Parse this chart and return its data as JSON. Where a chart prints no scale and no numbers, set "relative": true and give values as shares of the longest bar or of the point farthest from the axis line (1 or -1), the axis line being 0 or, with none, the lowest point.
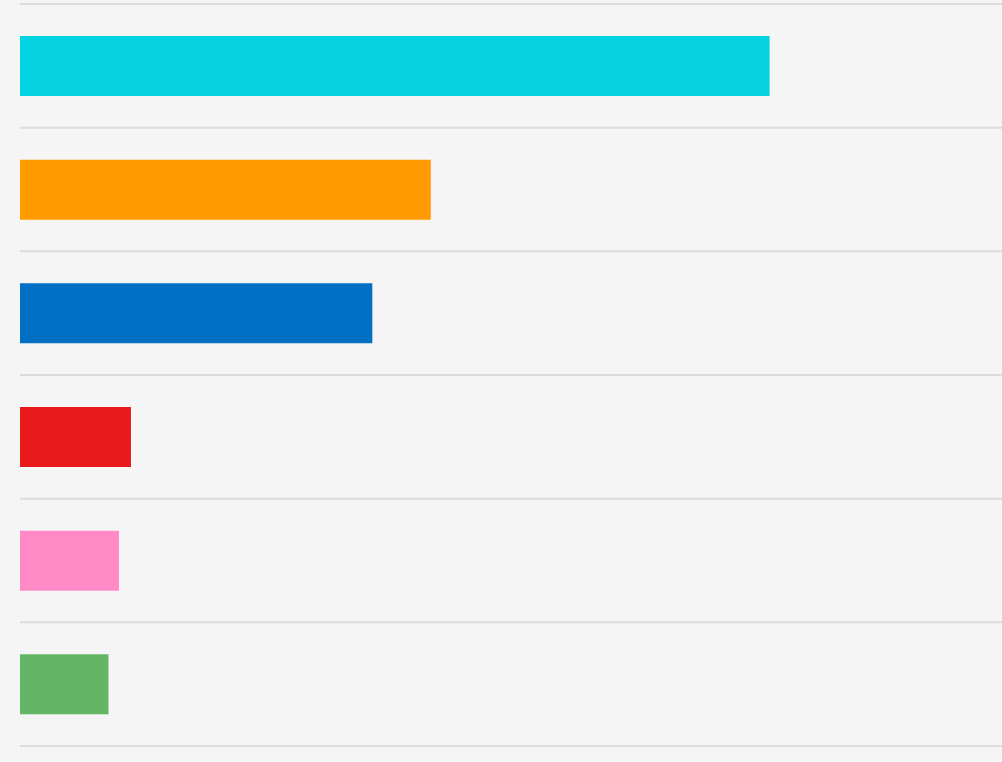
{
  "chart_data": {
    "type": "bar",
    "orientation": "horizontal",
    "relative": true,
    "grid": "y",
    "categories": [
      null,
      null,
      null,
      null,
      null,
      null
    ],
    "values": [
      1,
      0.548,
      0.47,
      0.148,
      0.132,
      0.118
    ],
    "colors": [
      "#06d3e2",
      "#ff9b00",
      "#0070c4",
      "#e8191b",
      "#ff8ac6",
      "#64b566"
    ]
  }
}
